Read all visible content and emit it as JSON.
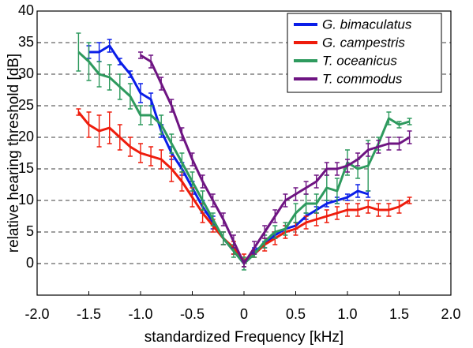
{
  "chart_data": {
    "type": "line",
    "x_label": "standardized Frequency [kHz]",
    "y_label": "relative hearing threshold [dB]",
    "xlim": [
      -2.0,
      2.0
    ],
    "xticks": [
      {
        "value": -2.0,
        "label": "-2.0"
      },
      {
        "value": -1.5,
        "label": "-1.5"
      },
      {
        "value": -1.0,
        "label": "-1.0"
      },
      {
        "value": -0.5,
        "label": "-0.5"
      },
      {
        "value": 0,
        "label": "0"
      },
      {
        "value": 0.5,
        "label": "0.5"
      },
      {
        "value": 1.0,
        "label": "1.0"
      },
      {
        "value": 1.5,
        "label": "1.5"
      },
      {
        "value": 2.0,
        "label": "2.0"
      }
    ],
    "ylim": [
      -5,
      40
    ],
    "yticks": [
      0,
      5,
      10,
      15,
      20,
      25,
      30,
      35,
      40
    ],
    "grid": true,
    "legend": "upper right",
    "series": [
      {
        "name": "G. bimaculatus",
        "color": "#0a1ee8",
        "x": [
          -1.5,
          -1.4,
          -1.3,
          -1.2,
          -1.1,
          -1.0,
          -0.9,
          -0.8,
          -0.7,
          -0.6,
          -0.5,
          -0.4,
          -0.3,
          -0.2,
          -0.1,
          0,
          0.1,
          0.2,
          0.3,
          0.4,
          0.5,
          0.6,
          0.7,
          0.8,
          0.9,
          1.0,
          1.1,
          1.2
        ],
        "values": [
          33.5,
          33.5,
          34.5,
          32,
          30,
          27,
          26,
          21,
          17.5,
          15,
          12,
          9,
          6.5,
          4,
          2,
          0,
          2,
          3,
          4.5,
          5.5,
          6,
          7.5,
          8.5,
          9.5,
          10,
          10.5,
          11.5,
          11
        ],
        "errors": [
          1,
          1.5,
          1,
          0.5,
          0.5,
          1.5,
          1,
          1,
          1,
          1,
          1,
          1,
          1,
          1,
          0.5,
          0.5,
          0.5,
          0.5,
          0.5,
          0.5,
          0.5,
          0.5,
          0.5,
          0.5,
          0.5,
          0.5,
          1,
          0.5
        ]
      },
      {
        "name": "G. campestris",
        "color": "#ee1c0c",
        "x": [
          -1.6,
          -1.5,
          -1.4,
          -1.3,
          -1.2,
          -1.1,
          -1.0,
          -0.9,
          -0.8,
          -0.7,
          -0.6,
          -0.5,
          -0.4,
          -0.3,
          -0.2,
          -0.1,
          0,
          0.1,
          0.2,
          0.3,
          0.4,
          0.5,
          0.6,
          0.7,
          0.8,
          0.9,
          1.0,
          1.1,
          1.2,
          1.3,
          1.4,
          1.5,
          1.6
        ],
        "values": [
          24,
          22,
          21,
          21.5,
          20,
          18.5,
          17.5,
          17,
          16.5,
          15,
          13,
          10.5,
          8,
          6,
          4,
          2.5,
          0.5,
          1.5,
          3,
          4,
          5,
          5.5,
          6.5,
          7,
          7.5,
          8,
          8.5,
          8.5,
          9,
          8.5,
          8.5,
          9,
          10
        ],
        "errors": [
          0.5,
          2,
          2.5,
          2.5,
          2,
          1.5,
          1.5,
          1.5,
          1.5,
          2,
          1.5,
          1.5,
          1.5,
          1,
          1,
          1,
          1,
          0.5,
          1,
          1,
          1,
          1,
          1,
          1,
          1,
          1,
          1,
          1,
          1,
          1,
          1,
          1,
          0.5
        ]
      },
      {
        "name": "T. oceanicus",
        "color": "#2e9a5e",
        "x": [
          -1.6,
          -1.5,
          -1.4,
          -1.3,
          -1.2,
          -1.1,
          -1.0,
          -0.9,
          -0.8,
          -0.7,
          -0.6,
          -0.5,
          -0.4,
          -0.3,
          -0.2,
          -0.1,
          0,
          0.1,
          0.2,
          0.3,
          0.4,
          0.5,
          0.6,
          0.7,
          0.8,
          0.9,
          1.0,
          1.1,
          1.2,
          1.3,
          1.4,
          1.5,
          1.6
        ],
        "values": [
          33.5,
          32,
          30,
          29.5,
          28,
          26.5,
          23.5,
          23.5,
          22,
          19,
          16,
          13,
          10,
          7,
          4,
          2,
          0,
          1.5,
          3.5,
          5,
          5.5,
          8,
          9.5,
          9.5,
          12,
          11.5,
          16,
          15,
          15.5,
          19,
          23,
          22,
          22.5
        ],
        "errors": [
          3,
          3,
          2,
          2,
          2,
          2,
          1.5,
          1.5,
          1.5,
          1.5,
          1.5,
          1.5,
          1.5,
          1,
          1,
          1,
          1,
          0.5,
          1,
          1,
          1,
          1.5,
          1.5,
          1.5,
          2,
          2,
          2,
          1.5,
          4,
          1,
          1,
          0.5,
          0.5
        ]
      },
      {
        "name": "T. commodus",
        "color": "#6e1482",
        "x": [
          -1.0,
          -0.9,
          -0.8,
          -0.7,
          -0.6,
          -0.5,
          -0.4,
          -0.3,
          -0.2,
          -0.1,
          0,
          0.1,
          0.2,
          0.3,
          0.4,
          0.5,
          0.6,
          0.7,
          0.8,
          0.9,
          1.0,
          1.1,
          1.2,
          1.3,
          1.4,
          1.5,
          1.6
        ],
        "values": [
          33,
          32,
          28.5,
          25,
          20.5,
          16.5,
          13,
          10,
          7,
          3.5,
          0,
          2.5,
          5,
          7.5,
          10,
          11,
          12,
          13,
          15,
          15,
          15.5,
          16.5,
          18,
          18.5,
          19,
          19,
          20
        ],
        "errors": [
          0.5,
          1,
          1,
          1,
          1,
          1,
          1,
          1,
          1,
          1,
          0.5,
          1,
          1,
          1,
          1,
          1,
          1,
          1,
          1,
          1,
          1,
          1,
          1,
          1,
          1,
          1,
          1
        ]
      }
    ]
  }
}
